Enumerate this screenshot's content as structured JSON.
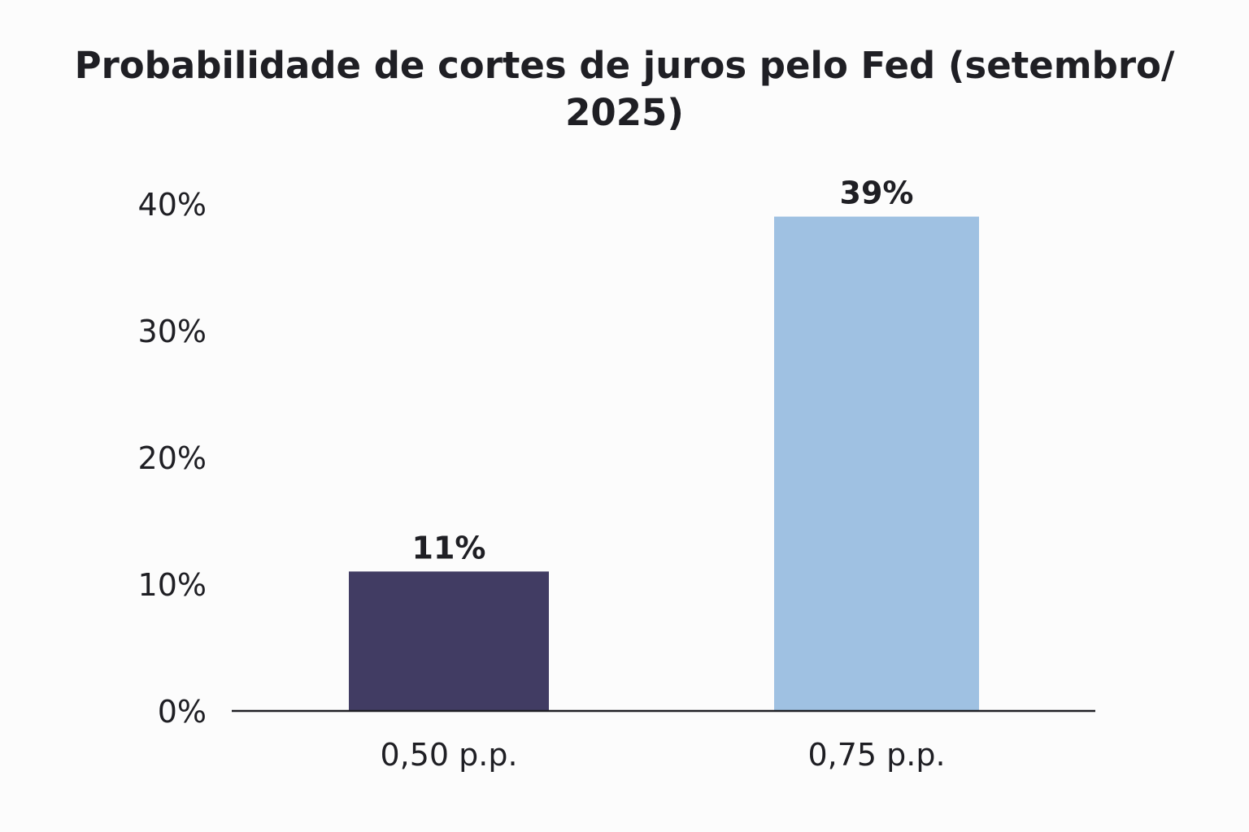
{
  "chart_data": {
    "type": "bar",
    "title_lines": [
      "Probabilidade de cortes de juros pelo Fed (setembro/",
      "2025)"
    ],
    "categories": [
      "0,50 p.p.",
      "0,75 p.p."
    ],
    "values": [
      11,
      39
    ],
    "value_labels": [
      "11%",
      "39%"
    ],
    "bar_colors": [
      "#413c63",
      "#9fc1e2"
    ],
    "ylim": [
      0,
      40
    ],
    "y_ticks": [
      0,
      10,
      20,
      30,
      40
    ],
    "y_tick_labels": [
      "0%",
      "10%",
      "20%",
      "30%",
      "40%"
    ],
    "xlabel": "",
    "ylabel": "",
    "grid": false,
    "legend": "none"
  }
}
